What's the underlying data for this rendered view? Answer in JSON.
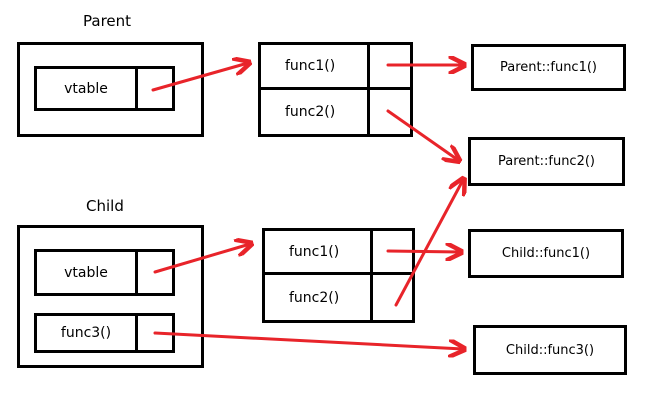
{
  "parent": {
    "title": "Parent",
    "slot": "vtable",
    "vtable": [
      "func1()",
      "func2()"
    ]
  },
  "child": {
    "title": "Child",
    "slots": [
      "vtable",
      "func3()"
    ],
    "vtable": [
      "func1()",
      "func2()"
    ]
  },
  "targets": [
    "Parent::func1()",
    "Parent::func2()",
    "Child::func1()",
    "Child::func3()"
  ],
  "colors": {
    "arrow": "#e8242a",
    "border": "#000000"
  }
}
